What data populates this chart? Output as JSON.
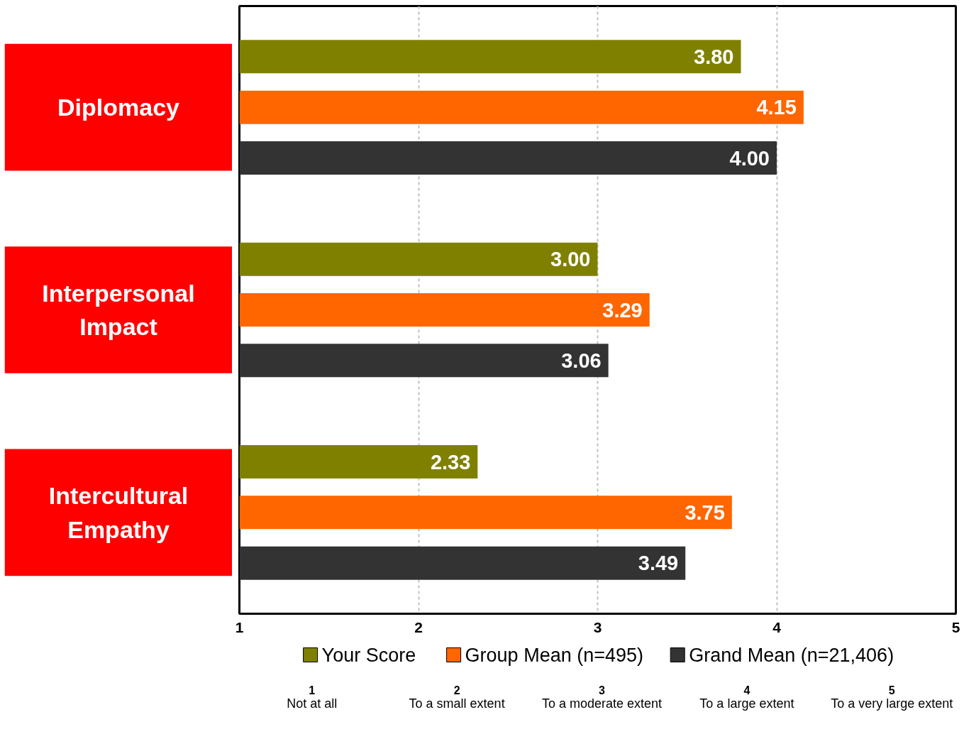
{
  "chart_data": {
    "type": "bar",
    "orientation": "horizontal",
    "categories": [
      "Diplomacy",
      "Interpersonal Impact",
      "Intercultural Empathy"
    ],
    "series": [
      {
        "name": "Your Score",
        "color": "#808000",
        "values": [
          3.8,
          3.0,
          2.33
        ],
        "value_labels": [
          "3.80",
          "3.00",
          "2.33"
        ]
      },
      {
        "name": "Group Mean (n=495)",
        "color": "#ff6600",
        "values": [
          4.15,
          3.29,
          3.75
        ],
        "value_labels": [
          "4.15",
          "3.29",
          "3.75"
        ]
      },
      {
        "name": "Grand Mean (n=21,406)",
        "color": "#333333",
        "values": [
          4.0,
          3.06,
          3.49
        ],
        "value_labels": [
          "4.00",
          "3.06",
          "3.49"
        ]
      }
    ],
    "xlim": [
      1,
      5
    ],
    "xticks": [
      1,
      2,
      3,
      4,
      5
    ],
    "grid": "x",
    "legend": "bottom",
    "annotations": [
      "1\nNot at all",
      "2\nTo a small extent",
      "3\nTo a moderate extent",
      "4\nTo a large extent",
      "5\nTo a very large extent"
    ]
  }
}
